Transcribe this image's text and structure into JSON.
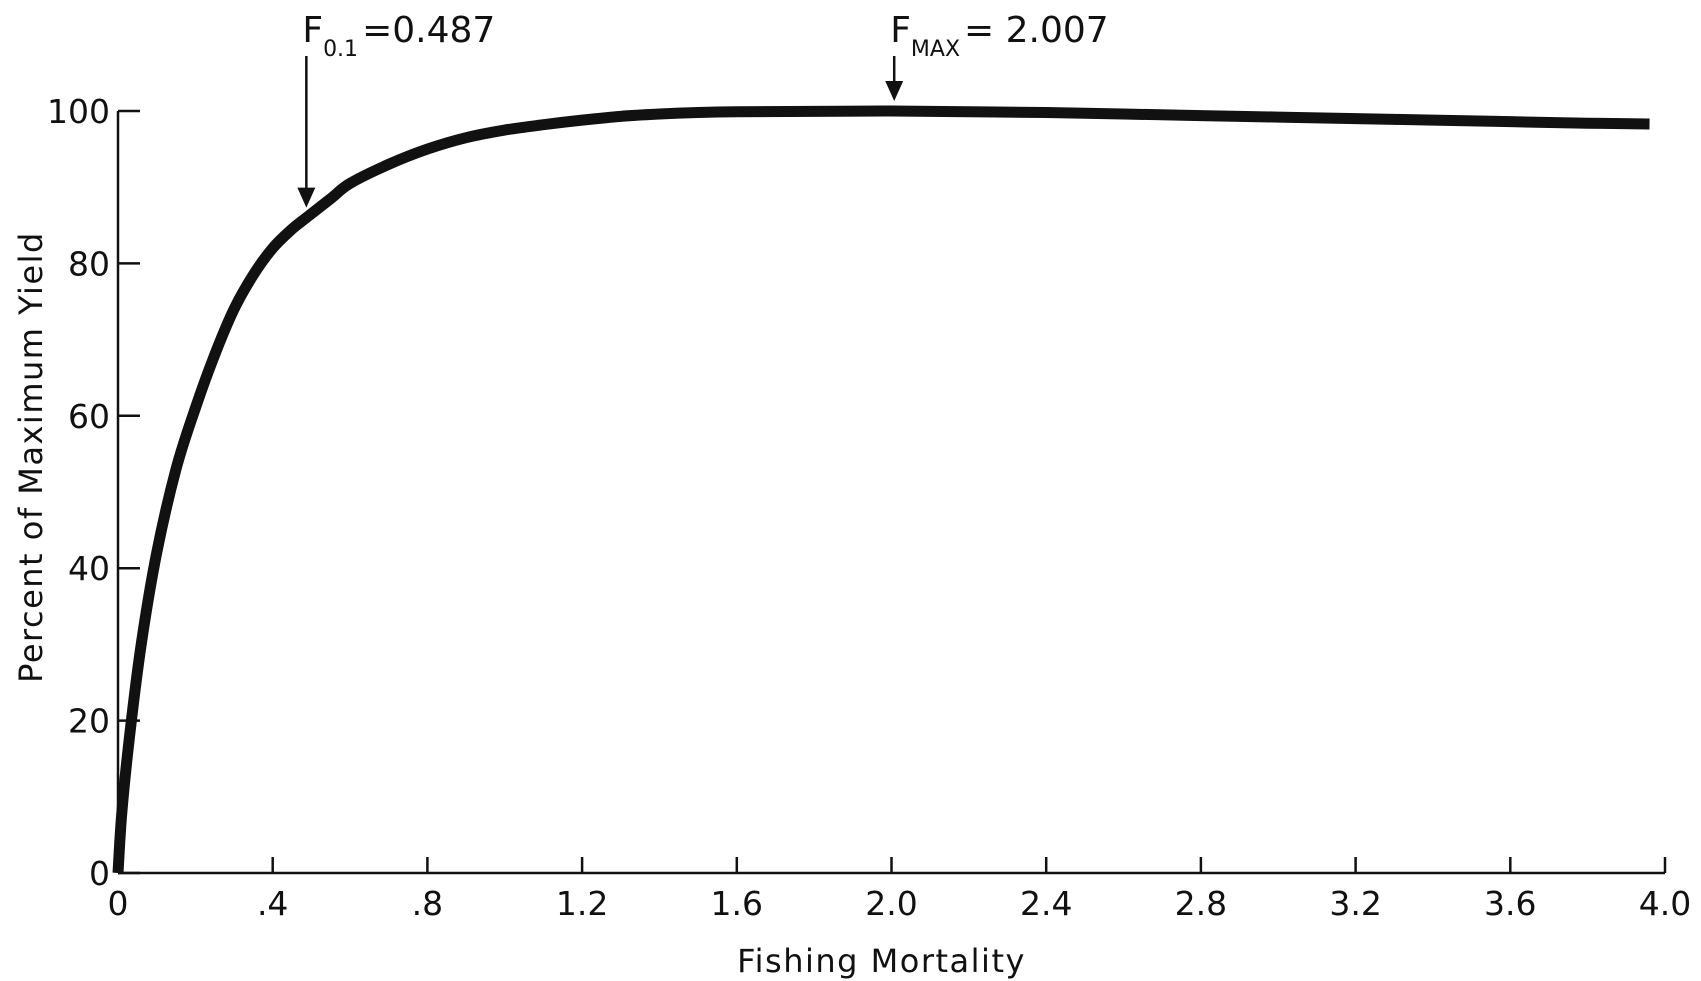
{
  "chart_data": {
    "type": "line",
    "title": "",
    "xlabel": "Fishing Mortality",
    "ylabel": "Percent of Maximum Yield",
    "xlim": [
      0,
      4.0
    ],
    "ylim": [
      0,
      100
    ],
    "grid": false,
    "x_ticks": [
      {
        "value": 0,
        "label": "0"
      },
      {
        "value": 0.4,
        "label": ".4"
      },
      {
        "value": 0.8,
        "label": ".8"
      },
      {
        "value": 1.2,
        "label": "1.2"
      },
      {
        "value": 1.6,
        "label": "1.6"
      },
      {
        "value": 2.0,
        "label": "2.0"
      },
      {
        "value": 2.4,
        "label": "2.4"
      },
      {
        "value": 2.8,
        "label": "2.8"
      },
      {
        "value": 3.2,
        "label": "3.2"
      },
      {
        "value": 3.6,
        "label": "3.6"
      },
      {
        "value": 4.0,
        "label": "4.0"
      }
    ],
    "y_ticks": [
      {
        "value": 0,
        "label": "0"
      },
      {
        "value": 20,
        "label": "20"
      },
      {
        "value": 40,
        "label": "40"
      },
      {
        "value": 60,
        "label": "60"
      },
      {
        "value": 80,
        "label": "80"
      },
      {
        "value": 100,
        "label": "100"
      }
    ],
    "series": [
      {
        "color": "#111111",
        "points": [
          [
            0,
            0
          ],
          [
            0.01,
            8
          ],
          [
            0.03,
            18
          ],
          [
            0.06,
            30
          ],
          [
            0.1,
            42
          ],
          [
            0.15,
            53
          ],
          [
            0.2,
            61
          ],
          [
            0.25,
            68
          ],
          [
            0.3,
            74
          ],
          [
            0.35,
            78.5
          ],
          [
            0.4,
            82
          ],
          [
            0.45,
            84.5
          ],
          [
            0.487,
            86
          ],
          [
            0.55,
            88.5
          ],
          [
            0.6,
            90.5
          ],
          [
            0.7,
            93
          ],
          [
            0.8,
            95
          ],
          [
            0.9,
            96.5
          ],
          [
            1.0,
            97.5
          ],
          [
            1.1,
            98.2
          ],
          [
            1.2,
            98.8
          ],
          [
            1.3,
            99.3
          ],
          [
            1.4,
            99.6
          ],
          [
            1.5,
            99.8
          ],
          [
            1.6,
            99.9
          ],
          [
            1.8,
            99.95
          ],
          [
            2.0,
            100
          ],
          [
            2.2,
            99.9
          ],
          [
            2.4,
            99.8
          ],
          [
            2.6,
            99.6
          ],
          [
            2.8,
            99.4
          ],
          [
            3.0,
            99.2
          ],
          [
            3.2,
            99.0
          ],
          [
            3.4,
            98.8
          ],
          [
            3.6,
            98.6
          ],
          [
            3.8,
            98.4
          ],
          [
            3.96,
            98.3
          ]
        ]
      }
    ],
    "annotations": [
      {
        "name": "f01",
        "x": 0.487,
        "main": "F",
        "sub": "0.1",
        "value": "=0.487",
        "arrow_to_y": 86
      },
      {
        "name": "fmax",
        "x": 2.007,
        "main": "F",
        "sub": "MAX",
        "value": "= 2.007",
        "arrow_to_y": 100
      }
    ]
  }
}
